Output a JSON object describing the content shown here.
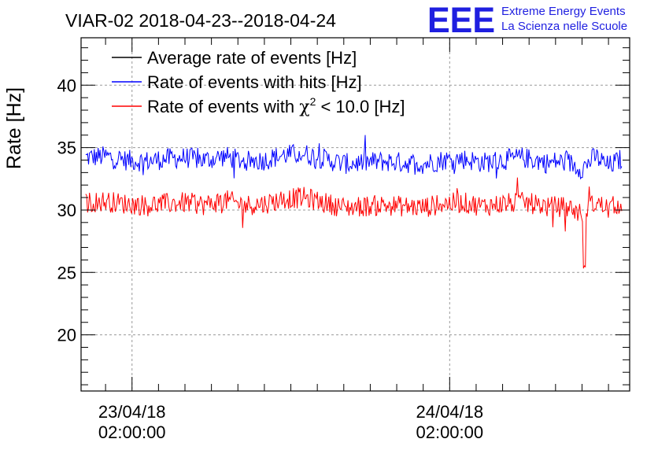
{
  "title": "VIAR-02 2018-04-23--2018-04-24",
  "logo": {
    "letters": "EEE",
    "line1": "Extreme Energy Events",
    "line2": "La Scienza nelle Scuole",
    "color": "#1f1fe0"
  },
  "chart_data": {
    "type": "line",
    "ylabel": "Rate [Hz]",
    "ylim": [
      15.5,
      43.8
    ],
    "xlim_hours": [
      -3.85,
      37.6
    ],
    "grid": true,
    "legend_position": "top-left",
    "yticks": [
      20,
      25,
      30,
      35,
      40
    ],
    "xticks": [
      {
        "hour": 0,
        "line1": "23/04/18",
        "line2": "02:00:00"
      },
      {
        "hour": 24,
        "line1": "24/04/18",
        "line2": "02:00:00"
      }
    ],
    "legend": [
      {
        "label": "Average rate of events [Hz]",
        "color": "#000000"
      },
      {
        "label": "Rate of events with hits [Hz]",
        "color": "#0000ff"
      },
      {
        "label_pre": "Rate of events with ",
        "label_chi": "χ",
        "label_sup": "2",
        "label_post": " < 10.0 [Hz]",
        "color": "#ff0000"
      }
    ],
    "series": [
      {
        "name": "Rate of events with hits [Hz]",
        "color": "#0000ff",
        "hours": [
          -3.5,
          -2,
          -0.5,
          1,
          2.5,
          4,
          5.5,
          7,
          8.5,
          10,
          11.5,
          13,
          14.5,
          16,
          17.5,
          19,
          20.5,
          22,
          23.5,
          25,
          26.5,
          28,
          29.5,
          31,
          31.5,
          32,
          33,
          34,
          35,
          36,
          37
        ],
        "values": [
          34.2,
          34.3,
          34.0,
          33.9,
          34.1,
          34.2,
          34.0,
          34.3,
          33.9,
          34.0,
          34.4,
          34.5,
          34.1,
          33.7,
          33.8,
          33.9,
          33.8,
          33.7,
          34.0,
          34.1,
          33.8,
          34.0,
          34.2,
          33.9,
          33.7,
          33.9,
          33.8,
          33.3,
          34.3,
          33.5,
          34.1
        ],
        "noise": 0.85
      },
      {
        "name": "Rate of events with χ2 < 10.0 [Hz]",
        "color": "#ff0000",
        "hours": [
          -3.5,
          -2,
          -0.5,
          1,
          2.5,
          4,
          5.5,
          7,
          8.5,
          10,
          11.5,
          13,
          14.5,
          16,
          17.5,
          19,
          20.5,
          22,
          23.5,
          25,
          26.5,
          28,
          29.5,
          31,
          31.5,
          32,
          33,
          34,
          35,
          36,
          37
        ],
        "values": [
          30.6,
          30.7,
          30.5,
          30.4,
          30.5,
          30.6,
          30.4,
          30.8,
          30.4,
          30.5,
          30.9,
          31.0,
          30.6,
          30.2,
          30.3,
          30.4,
          30.3,
          30.2,
          30.5,
          30.6,
          30.3,
          30.5,
          30.6,
          30.4,
          30.2,
          30.3,
          30.2,
          29.7,
          30.6,
          30.1,
          30.6
        ],
        "noise": 0.85,
        "dip": {
          "hour": 34.2,
          "value": 25.0
        }
      }
    ]
  }
}
